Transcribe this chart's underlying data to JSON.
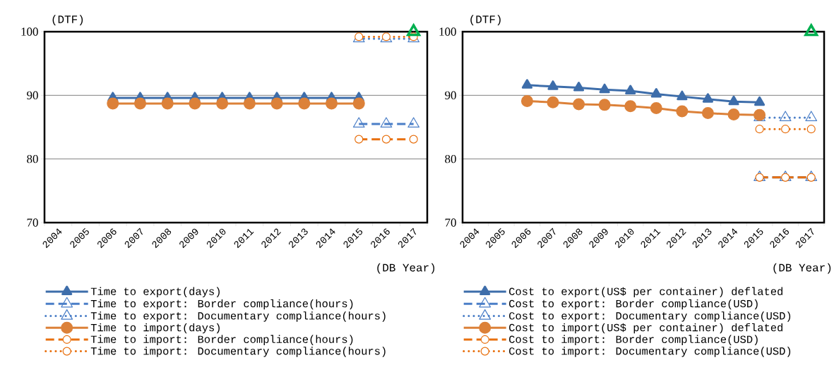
{
  "chart_data": [
    {
      "type": "line",
      "ylabel": "(DTF)",
      "xlabel": "(DB Year)",
      "categories": [
        "2004",
        "2005",
        "2006",
        "2007",
        "2008",
        "2009",
        "2010",
        "2011",
        "2012",
        "2013",
        "2014",
        "2015",
        "2016",
        "2017"
      ],
      "ylim": [
        70,
        100
      ],
      "yticks": [
        70,
        80,
        90,
        100
      ],
      "grid": "y",
      "legend": "bottom",
      "series": [
        {
          "name": "Time to export(days)",
          "color": "#3d6daa",
          "marker": "triangle",
          "line_style": "solid",
          "values": [
            null,
            null,
            89.6,
            89.6,
            89.6,
            89.6,
            89.6,
            89.6,
            89.6,
            89.6,
            89.6,
            89.6,
            null,
            null
          ]
        },
        {
          "name": "Time to export: Border compliance(hours)",
          "color": "#4a7ec7",
          "marker": "triangle",
          "line_style": "dashed",
          "values": [
            null,
            null,
            null,
            null,
            null,
            null,
            null,
            null,
            null,
            null,
            null,
            85.5,
            85.5,
            85.5
          ]
        },
        {
          "name": "Time to export: Documentary compliance(hours)",
          "color": "#4a7ec7",
          "marker": "triangle",
          "line_style": "dotted",
          "values": [
            null,
            null,
            null,
            null,
            null,
            null,
            null,
            null,
            null,
            null,
            null,
            98.9,
            98.9,
            98.9
          ]
        },
        {
          "name": "Time to import(days)",
          "color": "#dc8139",
          "marker": "circle",
          "line_style": "solid",
          "values": [
            null,
            null,
            88.7,
            88.7,
            88.7,
            88.7,
            88.7,
            88.7,
            88.7,
            88.7,
            88.7,
            88.7,
            null,
            null
          ]
        },
        {
          "name": "Time to import: Border compliance(hours)",
          "color": "#e8700f",
          "marker": "circle",
          "line_style": "dashed",
          "values": [
            null,
            null,
            null,
            null,
            null,
            null,
            null,
            null,
            null,
            null,
            null,
            83.1,
            83.1,
            83.1
          ]
        },
        {
          "name": "Time to import: Documentary compliance(hours)",
          "color": "#e8700f",
          "marker": "circle",
          "line_style": "dotted",
          "values": [
            null,
            null,
            null,
            null,
            null,
            null,
            null,
            null,
            null,
            null,
            null,
            99.2,
            99.2,
            99.2
          ]
        },
        {
          "type": "scatter",
          "color": "#00b050",
          "marker": "triangle",
          "values": [
            null,
            null,
            null,
            null,
            null,
            null,
            null,
            null,
            null,
            null,
            null,
            null,
            null,
            100
          ]
        }
      ]
    },
    {
      "type": "line",
      "ylabel": "(DTF)",
      "xlabel": "(DB Year)",
      "categories": [
        "2004",
        "2005",
        "2006",
        "2007",
        "2008",
        "2009",
        "2010",
        "2011",
        "2012",
        "2013",
        "2014",
        "2015",
        "2016",
        "2017"
      ],
      "ylim": [
        70,
        100
      ],
      "yticks": [
        70,
        80,
        90,
        100
      ],
      "grid": "y",
      "legend": "bottom",
      "series": [
        {
          "name": "Cost to export(US$ per container) deflated",
          "color": "#3d6daa",
          "marker": "triangle",
          "line_style": "solid",
          "values": [
            null,
            null,
            91.6,
            91.4,
            91.2,
            90.9,
            90.7,
            90.2,
            89.8,
            89.4,
            89.0,
            88.9,
            null,
            null
          ]
        },
        {
          "name": "Cost to export: Border compliance(USD)",
          "color": "#4a7ec7",
          "marker": "triangle",
          "line_style": "dashed",
          "values": [
            null,
            null,
            null,
            null,
            null,
            null,
            null,
            null,
            null,
            null,
            null,
            77.1,
            77.1,
            77.1
          ]
        },
        {
          "name": "Cost to export: Documentary compliance(USD)",
          "color": "#4a7ec7",
          "marker": "triangle",
          "line_style": "dotted",
          "values": [
            null,
            null,
            null,
            null,
            null,
            null,
            null,
            null,
            null,
            null,
            null,
            86.5,
            86.5,
            86.5
          ]
        },
        {
          "name": "Cost to import(US$ per container) deflated",
          "color": "#dc8139",
          "marker": "circle",
          "line_style": "solid",
          "values": [
            null,
            null,
            89.1,
            88.9,
            88.6,
            88.5,
            88.3,
            88.0,
            87.5,
            87.2,
            87.0,
            86.9,
            null,
            null
          ]
        },
        {
          "name": "Cost to import: Border compliance(USD)",
          "color": "#e8700f",
          "marker": "circle",
          "line_style": "dashed",
          "values": [
            null,
            null,
            null,
            null,
            null,
            null,
            null,
            null,
            null,
            null,
            null,
            77.1,
            77.1,
            77.1
          ]
        },
        {
          "name": "Cost to import: Documentary compliance(USD)",
          "color": "#e8700f",
          "marker": "circle",
          "line_style": "dotted",
          "values": [
            null,
            null,
            null,
            null,
            null,
            null,
            null,
            null,
            null,
            null,
            null,
            84.7,
            84.7,
            84.7
          ]
        },
        {
          "type": "scatter",
          "color": "#00b050",
          "marker": "triangle",
          "values": [
            null,
            null,
            null,
            null,
            null,
            null,
            null,
            null,
            null,
            null,
            null,
            null,
            null,
            100
          ]
        }
      ]
    }
  ]
}
